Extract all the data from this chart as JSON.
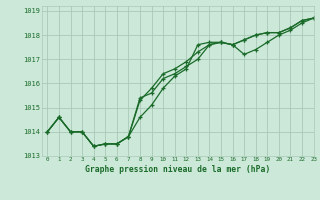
{
  "title": "Graphe pression niveau de la mer (hPa)",
  "bg_color": "#cce8d8",
  "grid_color": "#aac8b8",
  "line_color": "#1a6b2a",
  "xlim": [
    -0.5,
    23
  ],
  "ylim": [
    1013.0,
    1019.2
  ],
  "yticks": [
    1013,
    1014,
    1015,
    1016,
    1017,
    1018,
    1019
  ],
  "xticks": [
    0,
    1,
    2,
    3,
    4,
    5,
    6,
    7,
    8,
    9,
    10,
    11,
    12,
    13,
    14,
    15,
    16,
    17,
    18,
    19,
    20,
    21,
    22,
    23
  ],
  "series": [
    [
      1014.0,
      1014.6,
      1014.0,
      1014.0,
      1013.4,
      1013.5,
      1013.5,
      1013.8,
      1014.6,
      1015.1,
      1015.8,
      1016.3,
      1016.6,
      1017.6,
      1017.7,
      1017.7,
      1017.6,
      1017.8,
      1018.0,
      1018.1,
      1018.1,
      1018.3,
      1018.6,
      1018.7
    ],
    [
      1014.0,
      1014.6,
      1014.0,
      1014.0,
      1013.4,
      1013.5,
      1013.5,
      1013.8,
      1015.3,
      1015.8,
      1016.4,
      1016.6,
      1016.9,
      1017.3,
      1017.6,
      1017.7,
      1017.6,
      1017.8,
      1018.0,
      1018.1,
      1018.1,
      1018.3,
      1018.6,
      1018.7
    ],
    [
      1014.0,
      1014.6,
      1014.0,
      1014.0,
      1013.4,
      1013.5,
      1013.5,
      1013.8,
      1015.4,
      1015.6,
      1016.2,
      1016.4,
      1016.7,
      1017.0,
      1017.6,
      1017.7,
      1017.6,
      1017.2,
      1017.4,
      1017.7,
      1018.0,
      1018.2,
      1018.5,
      1018.7
    ]
  ]
}
